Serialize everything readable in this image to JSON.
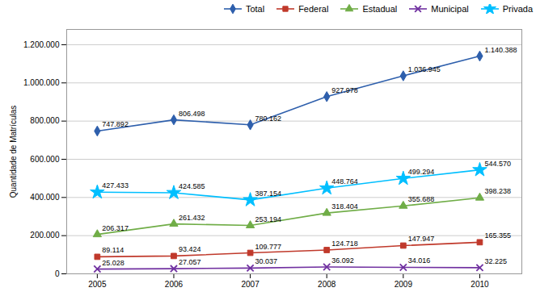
{
  "chart_data": {
    "type": "line",
    "x": [
      2005,
      2006,
      2007,
      2008,
      2009,
      2010
    ],
    "xlim": [
      2004.6,
      2010.55
    ],
    "xticks": [
      2005,
      2006,
      2007,
      2008,
      2009,
      2010
    ],
    "ylabel": "Quantidade de Matrículas",
    "ylim": [
      0,
      1280000
    ],
    "yticks": [
      0,
      {
        "value": 200000,
        "label": "200.000"
      },
      {
        "value": 400000,
        "label": "400.000"
      },
      {
        "value": 600000,
        "label": "600.000"
      },
      {
        "value": 800000,
        "label": "800.000"
      },
      {
        "value": 1000000,
        "label": "1.000.000"
      },
      {
        "value": 1200000,
        "label": "1.200.000"
      }
    ],
    "grid": true,
    "legend": "top",
    "data_labels": true,
    "series": [
      {
        "name": "Total",
        "color": "#2E5FAC",
        "marker": "diamond",
        "values": [
          747892,
          806498,
          780162,
          927978,
          1036945,
          1140388
        ],
        "value_labels": [
          "747.892",
          "806.498",
          "780.162",
          "927.978",
          "1.036.945",
          "1.140.388"
        ]
      },
      {
        "name": "Federal",
        "color": "#C0392B",
        "marker": "square",
        "values": [
          89114,
          93424,
          109777,
          124718,
          147947,
          165355
        ],
        "value_labels": [
          "89.114",
          "93.424",
          "109.777",
          "124.718",
          "147.947",
          "165.355"
        ]
      },
      {
        "name": "Estadual",
        "color": "#70AD47",
        "marker": "triangle",
        "values": [
          206317,
          261432,
          253194,
          318404,
          355688,
          398238
        ],
        "value_labels": [
          "206.317",
          "261.432",
          "253.194",
          "318.404",
          "355.688",
          "398.238"
        ]
      },
      {
        "name": "Municipal",
        "color": "#7030A0",
        "marker": "x",
        "values": [
          25028,
          27057,
          30037,
          36092,
          34016,
          32225
        ],
        "value_labels": [
          "25.028",
          "27.057",
          "30.037",
          "36.092",
          "34.016",
          "32.225"
        ]
      },
      {
        "name": "Privada",
        "color": "#00BFFF",
        "marker": "star",
        "values": [
          427433,
          424585,
          387154,
          448764,
          499294,
          544570
        ],
        "value_labels": [
          "427.433",
          "424.585",
          "387.154",
          "448.764",
          "499.294",
          "544.570"
        ]
      }
    ]
  }
}
